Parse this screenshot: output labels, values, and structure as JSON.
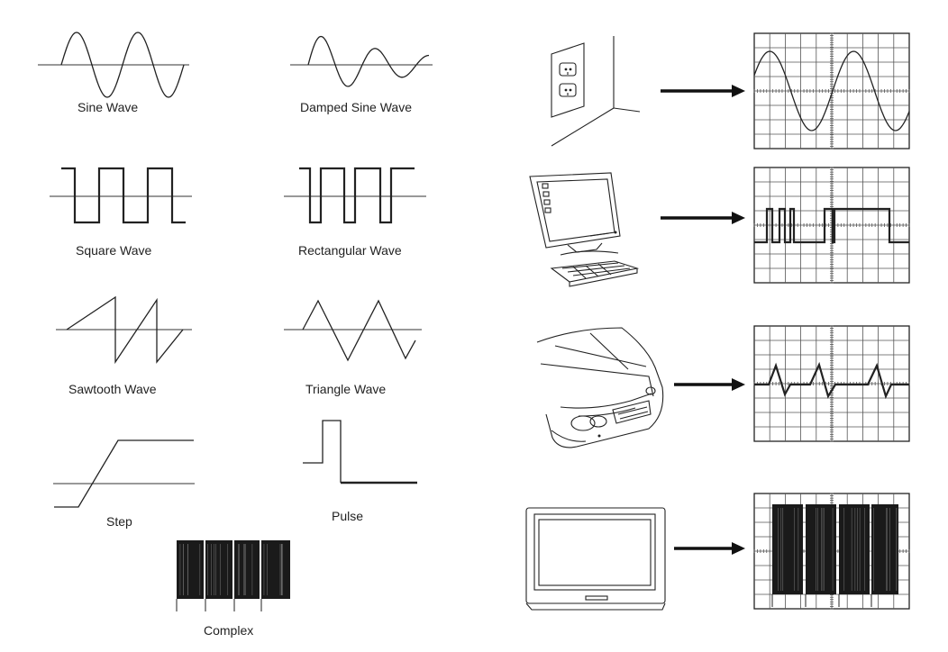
{
  "labels": {
    "sine": "Sine Wave",
    "damped_sine": "Damped Sine Wave",
    "square": "Square Wave",
    "rectangular": "Rectangular Wave",
    "sawtooth": "Sawtooth Wave",
    "triangle": "Triangle Wave",
    "step": "Step",
    "pulse": "Pulse",
    "complex": "Complex"
  },
  "sources": [
    {
      "name": "wall-outlet",
      "signal": "sine"
    },
    {
      "name": "computer",
      "signal": "square-rectangular"
    },
    {
      "name": "car",
      "signal": "triangle-spikes"
    },
    {
      "name": "television",
      "signal": "complex"
    }
  ],
  "colors": {
    "ink": "#222222",
    "background": "#ffffff"
  }
}
